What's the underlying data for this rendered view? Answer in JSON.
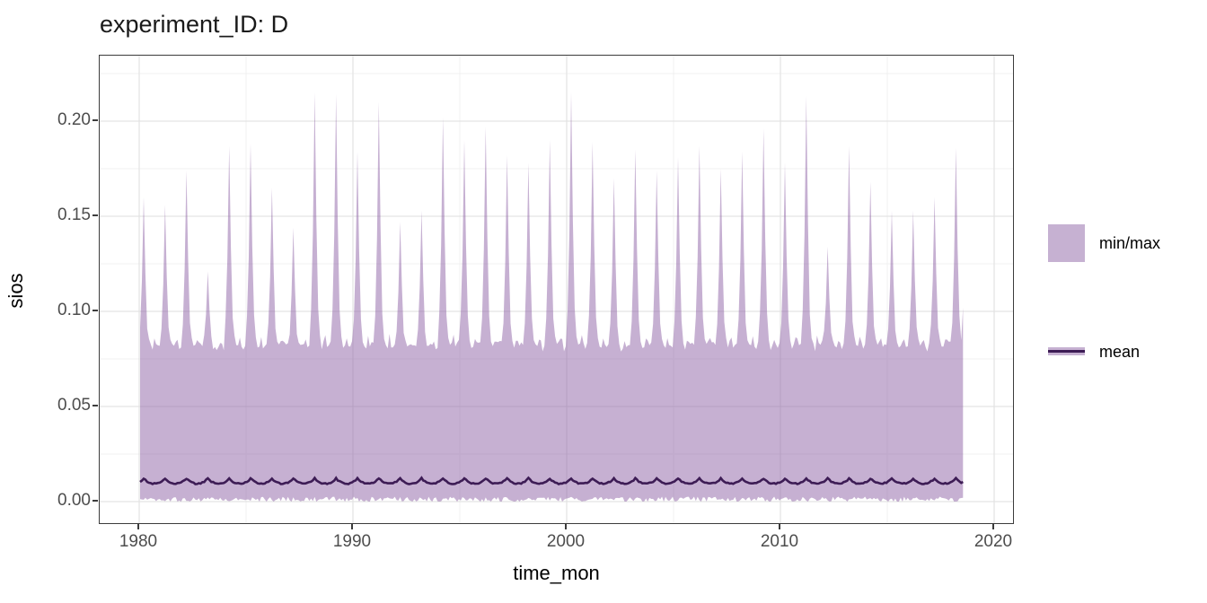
{
  "title": "experiment_ID: D",
  "chart_data": {
    "type": "area",
    "subtype": "min-max ribbon with mean line, monthly time series",
    "title": "experiment_ID: D",
    "xlabel": "time_mon",
    "ylabel": "sios",
    "x_ticks": [
      1980,
      1990,
      2000,
      2010,
      2020
    ],
    "x_minor_ticks": [
      1985,
      1995,
      2005,
      2015
    ],
    "y_ticks": [
      {
        "label": "0.00",
        "value": 0.0
      },
      {
        "label": "0.05",
        "value": 0.05
      },
      {
        "label": "0.10",
        "value": 0.1
      },
      {
        "label": "0.15",
        "value": 0.15
      },
      {
        "label": "0.20",
        "value": 0.2
      }
    ],
    "y_minor_values": [
      0.025,
      0.075,
      0.125,
      0.175,
      0.225
    ],
    "xlim": [
      1978.1,
      2020.9
    ],
    "ylim": [
      -0.0113,
      0.2344
    ],
    "x_start": 1980.042,
    "x_end": 2018.54,
    "grid": true,
    "legend_position": "right",
    "series": [
      {
        "name": "min/max",
        "type": "ribbon",
        "fill": "#c6b1d2",
        "fill_rgba": "rgba(141,97,165,0.5)",
        "max_envelope": {
          "baseline": 0.08,
          "baseline_range": [
            0.074,
            0.088
          ],
          "peak_month": "Mar",
          "monthly_weight_profile": [
            0.15,
            0.45,
            1.0,
            0.5,
            0.15,
            0.05,
            0.01,
            0.0,
            0.05,
            0.01,
            0.0,
            0.03
          ],
          "years": [
            1980,
            1981,
            1982,
            1983,
            1984,
            1985,
            1986,
            1987,
            1988,
            1989,
            1990,
            1991,
            1992,
            1993,
            1994,
            1995,
            1996,
            1997,
            1998,
            1999,
            2000,
            2001,
            2002,
            2003,
            2004,
            2005,
            2006,
            2007,
            2008,
            2009,
            2010,
            2011,
            2012,
            2013,
            2014,
            2015,
            2016,
            2017,
            2018
          ],
          "yearly_peak_max": [
            0.16,
            0.156,
            0.174,
            0.121,
            0.187,
            0.188,
            0.165,
            0.144,
            0.215,
            0.214,
            0.184,
            0.21,
            0.147,
            0.153,
            0.202,
            0.19,
            0.197,
            0.182,
            0.178,
            0.19,
            0.215,
            0.189,
            0.17,
            0.185,
            0.174,
            0.181,
            0.187,
            0.175,
            0.184,
            0.196,
            0.178,
            0.213,
            0.134,
            0.187,
            0.168,
            0.153,
            0.153,
            0.16,
            0.186
          ],
          "end_tail": {
            "t": 2018.54,
            "max": 0.102
          }
        },
        "min_envelope": {
          "range": [
            0.0,
            0.003
          ],
          "typical": 0.0012
        }
      },
      {
        "name": "mean",
        "type": "line",
        "color": "#3d1c55",
        "level": 0.01,
        "seasonal_peak_bump": 0.0016,
        "seasonal_cos_amplitude": 0.0006,
        "line_width": 2.6
      }
    ]
  },
  "legend": {
    "items": [
      {
        "label": "min/max",
        "swatch": "square",
        "color": "#c6b1d2"
      },
      {
        "label": "mean",
        "swatch": "line",
        "color": "#3d1c55"
      }
    ]
  },
  "colors": {
    "ribbon_fill": "#c6b1d2",
    "mean_line": "#3d1c55",
    "grid_major": "#e3e3e3",
    "grid_minor": "#f0f0f0",
    "panel_border": "#3c3c3c",
    "tick_label": "#4d4d4d",
    "title_text": "#1a1a1a"
  }
}
